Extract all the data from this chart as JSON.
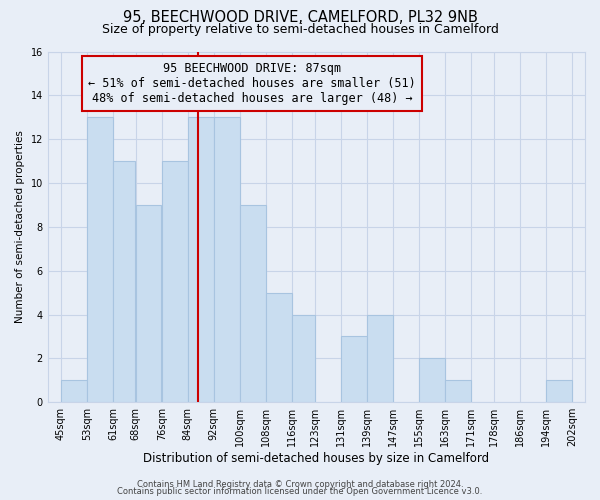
{
  "title": "95, BEECHWOOD DRIVE, CAMELFORD, PL32 9NB",
  "subtitle": "Size of property relative to semi-detached houses in Camelford",
  "bin_edges": [
    45,
    53,
    61,
    68,
    76,
    84,
    92,
    100,
    108,
    116,
    123,
    131,
    139,
    147,
    155,
    163,
    171,
    178,
    186,
    194,
    202
  ],
  "bin_labels": [
    "45sqm",
    "53sqm",
    "61sqm",
    "68sqm",
    "76sqm",
    "84sqm",
    "92sqm",
    "100sqm",
    "108sqm",
    "116sqm",
    "123sqm",
    "131sqm",
    "139sqm",
    "147sqm",
    "155sqm",
    "163sqm",
    "171sqm",
    "178sqm",
    "186sqm",
    "194sqm",
    "202sqm"
  ],
  "counts": [
    1,
    13,
    11,
    9,
    11,
    13,
    13,
    9,
    5,
    4,
    0,
    3,
    4,
    0,
    2,
    1,
    0,
    0,
    0,
    1
  ],
  "bar_color": "#c9ddf0",
  "bar_edgecolor": "#a8c4e0",
  "property_value": 87,
  "vline_color": "#cc0000",
  "annotation_line1": "95 BEECHWOOD DRIVE: 87sqm",
  "annotation_line2": "← 51% of semi-detached houses are smaller (51)",
  "annotation_line3": "48% of semi-detached houses are larger (48) →",
  "annotation_box_edgecolor": "#cc0000",
  "xlabel": "Distribution of semi-detached houses by size in Camelford",
  "ylabel": "Number of semi-detached properties",
  "ylim": [
    0,
    16
  ],
  "yticks": [
    0,
    2,
    4,
    6,
    8,
    10,
    12,
    14,
    16
  ],
  "footer1": "Contains HM Land Registry data © Crown copyright and database right 2024.",
  "footer2": "Contains public sector information licensed under the Open Government Licence v3.0.",
  "background_color": "#e8eef7",
  "grid_color": "#c8d4e8",
  "title_fontsize": 10.5,
  "subtitle_fontsize": 9,
  "xlabel_fontsize": 8.5,
  "ylabel_fontsize": 7.5,
  "tick_fontsize": 7,
  "annotation_fontsize": 8.5,
  "footer_fontsize": 6
}
